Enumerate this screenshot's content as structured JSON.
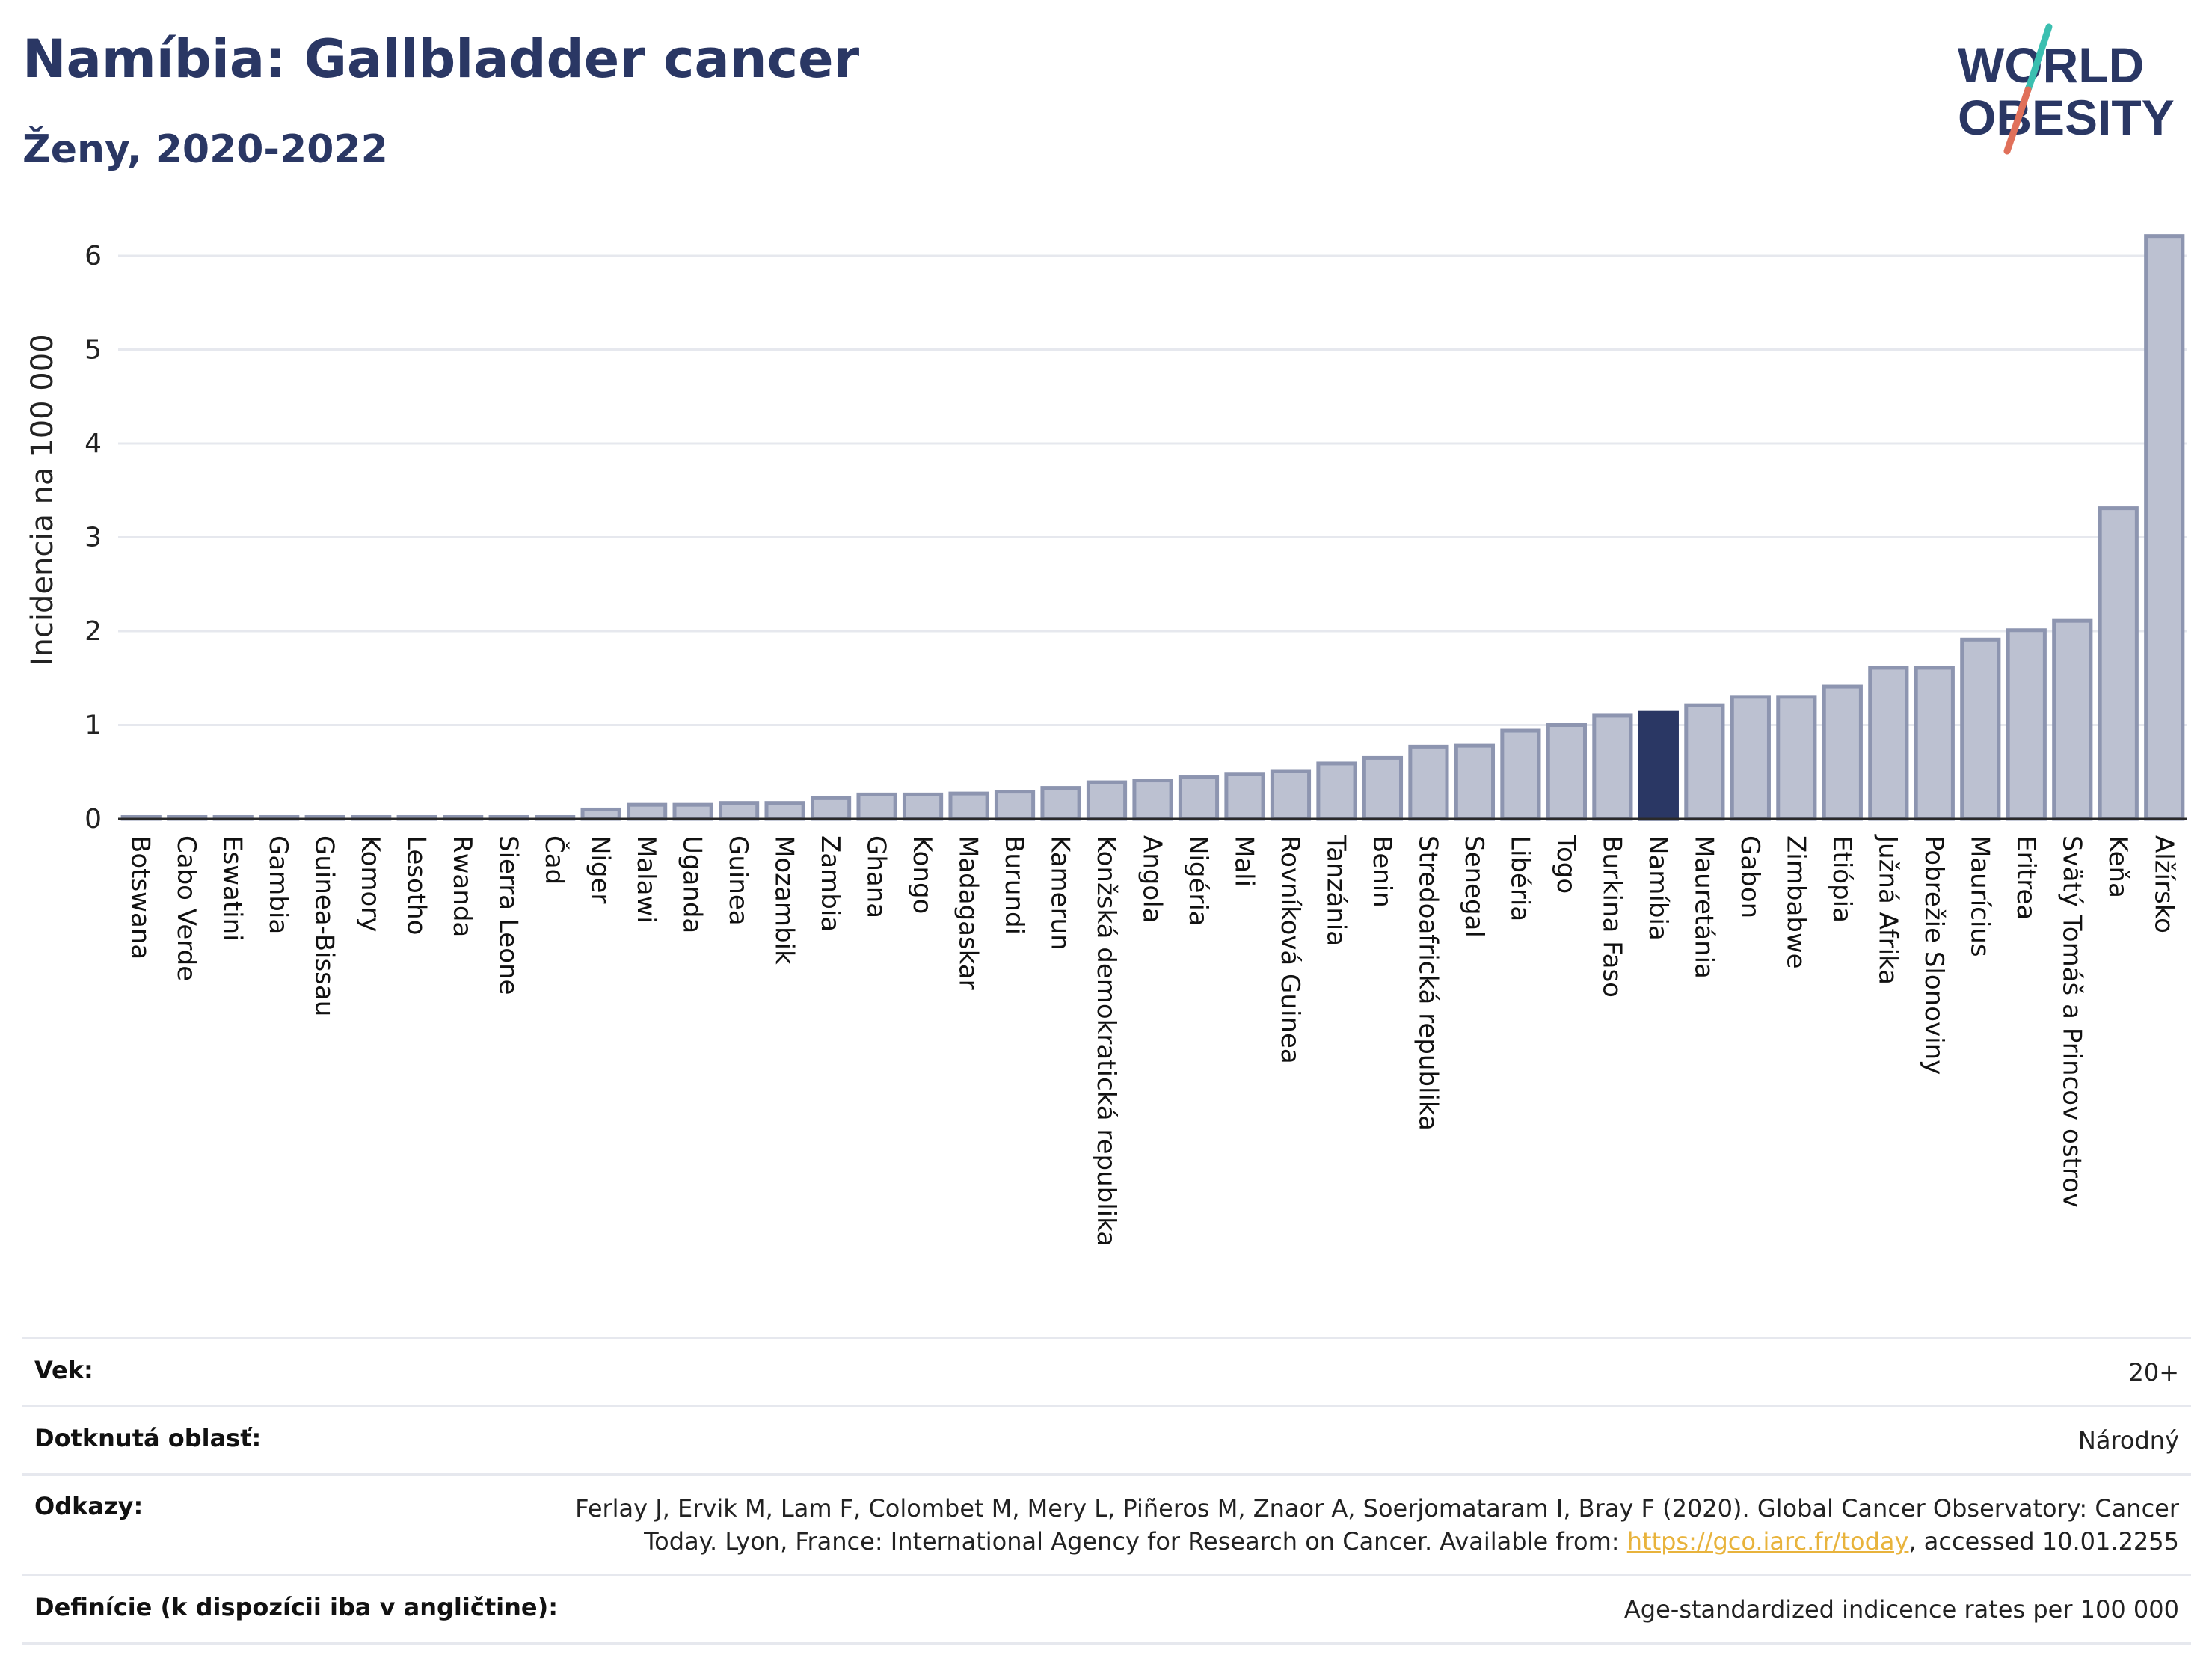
{
  "header": {
    "title": "Namíbia: Gallbladder cancer",
    "subtitle": "Ženy, 2020-2022"
  },
  "logo": {
    "line1": "WORLD",
    "line2": "OBESITY",
    "colors": {
      "text": "#2a3764",
      "slash_teal": "#3bbfb0",
      "slash_red": "#e0705a"
    }
  },
  "chart_data": {
    "type": "bar",
    "ylabel": "Incidencia na 100 000",
    "ylim": [
      0,
      6.5
    ],
    "yticks": [
      0,
      1,
      2,
      3,
      4,
      5,
      6
    ],
    "grid": true,
    "highlight": "Namíbia",
    "colors": {
      "bar": "#bcc1d1",
      "bar_border": "#8d95b0",
      "highlight": "#2a3764"
    },
    "categories": [
      "Botswana",
      "Cabo Verde",
      "Eswatini",
      "Gambia",
      "Guinea-Bissau",
      "Komory",
      "Lesotho",
      "Rwanda",
      "Sierra Leone",
      "Čad",
      "Niger",
      "Malawi",
      "Uganda",
      "Guinea",
      "Mozambik",
      "Zambia",
      "Ghana",
      "Kongo",
      "Madagaskar",
      "Burundi",
      "Kamerun",
      "Konžská demokratická republika",
      "Angola",
      "Nigéria",
      "Mali",
      "Rovníková Guinea",
      "Tanzánia",
      "Benin",
      "Stredoafrická republika",
      "Senegal",
      "Libéria",
      "Togo",
      "Burkina Faso",
      "Namíbia",
      "Mauretánia",
      "Gabon",
      "Zimbabwe",
      "Etiópia",
      "Južná Afrika",
      "Pobrežie Slonoviny",
      "Maurícius",
      "Eritrea",
      "Svätý Tomáš a Princov ostrov",
      "Keňa",
      "Alžírsko"
    ],
    "values": [
      0.02,
      0.02,
      0.02,
      0.02,
      0.02,
      0.02,
      0.02,
      0.02,
      0.02,
      0.02,
      0.1,
      0.15,
      0.15,
      0.17,
      0.17,
      0.22,
      0.26,
      0.26,
      0.27,
      0.29,
      0.33,
      0.39,
      0.41,
      0.45,
      0.48,
      0.51,
      0.59,
      0.65,
      0.77,
      0.78,
      0.94,
      1.0,
      1.1,
      1.13,
      1.21,
      1.3,
      1.3,
      1.41,
      1.61,
      1.61,
      1.91,
      2.01,
      2.11,
      3.31,
      6.21
    ]
  },
  "meta": [
    {
      "label": "Vek:",
      "value": "20+"
    },
    {
      "label": "Dotknutá oblasť:",
      "value": "Národný"
    },
    {
      "label": "Odkazy:",
      "value_before": "Ferlay J, Ervik M, Lam F, Colombet M, Mery L, Piñeros M, Znaor A, Soerjomataram I, Bray F (2020). Global Cancer Observatory: Cancer Today. Lyon, France: International Agency for Research on Cancer. Available from: ",
      "link": "https://gco.iarc.fr/today",
      "value_after": ", accessed 10.01.2255"
    },
    {
      "label": "Definície (k dispozícii iba v angličtine):",
      "value": "Age-standardized indicence rates per 100 000"
    }
  ]
}
